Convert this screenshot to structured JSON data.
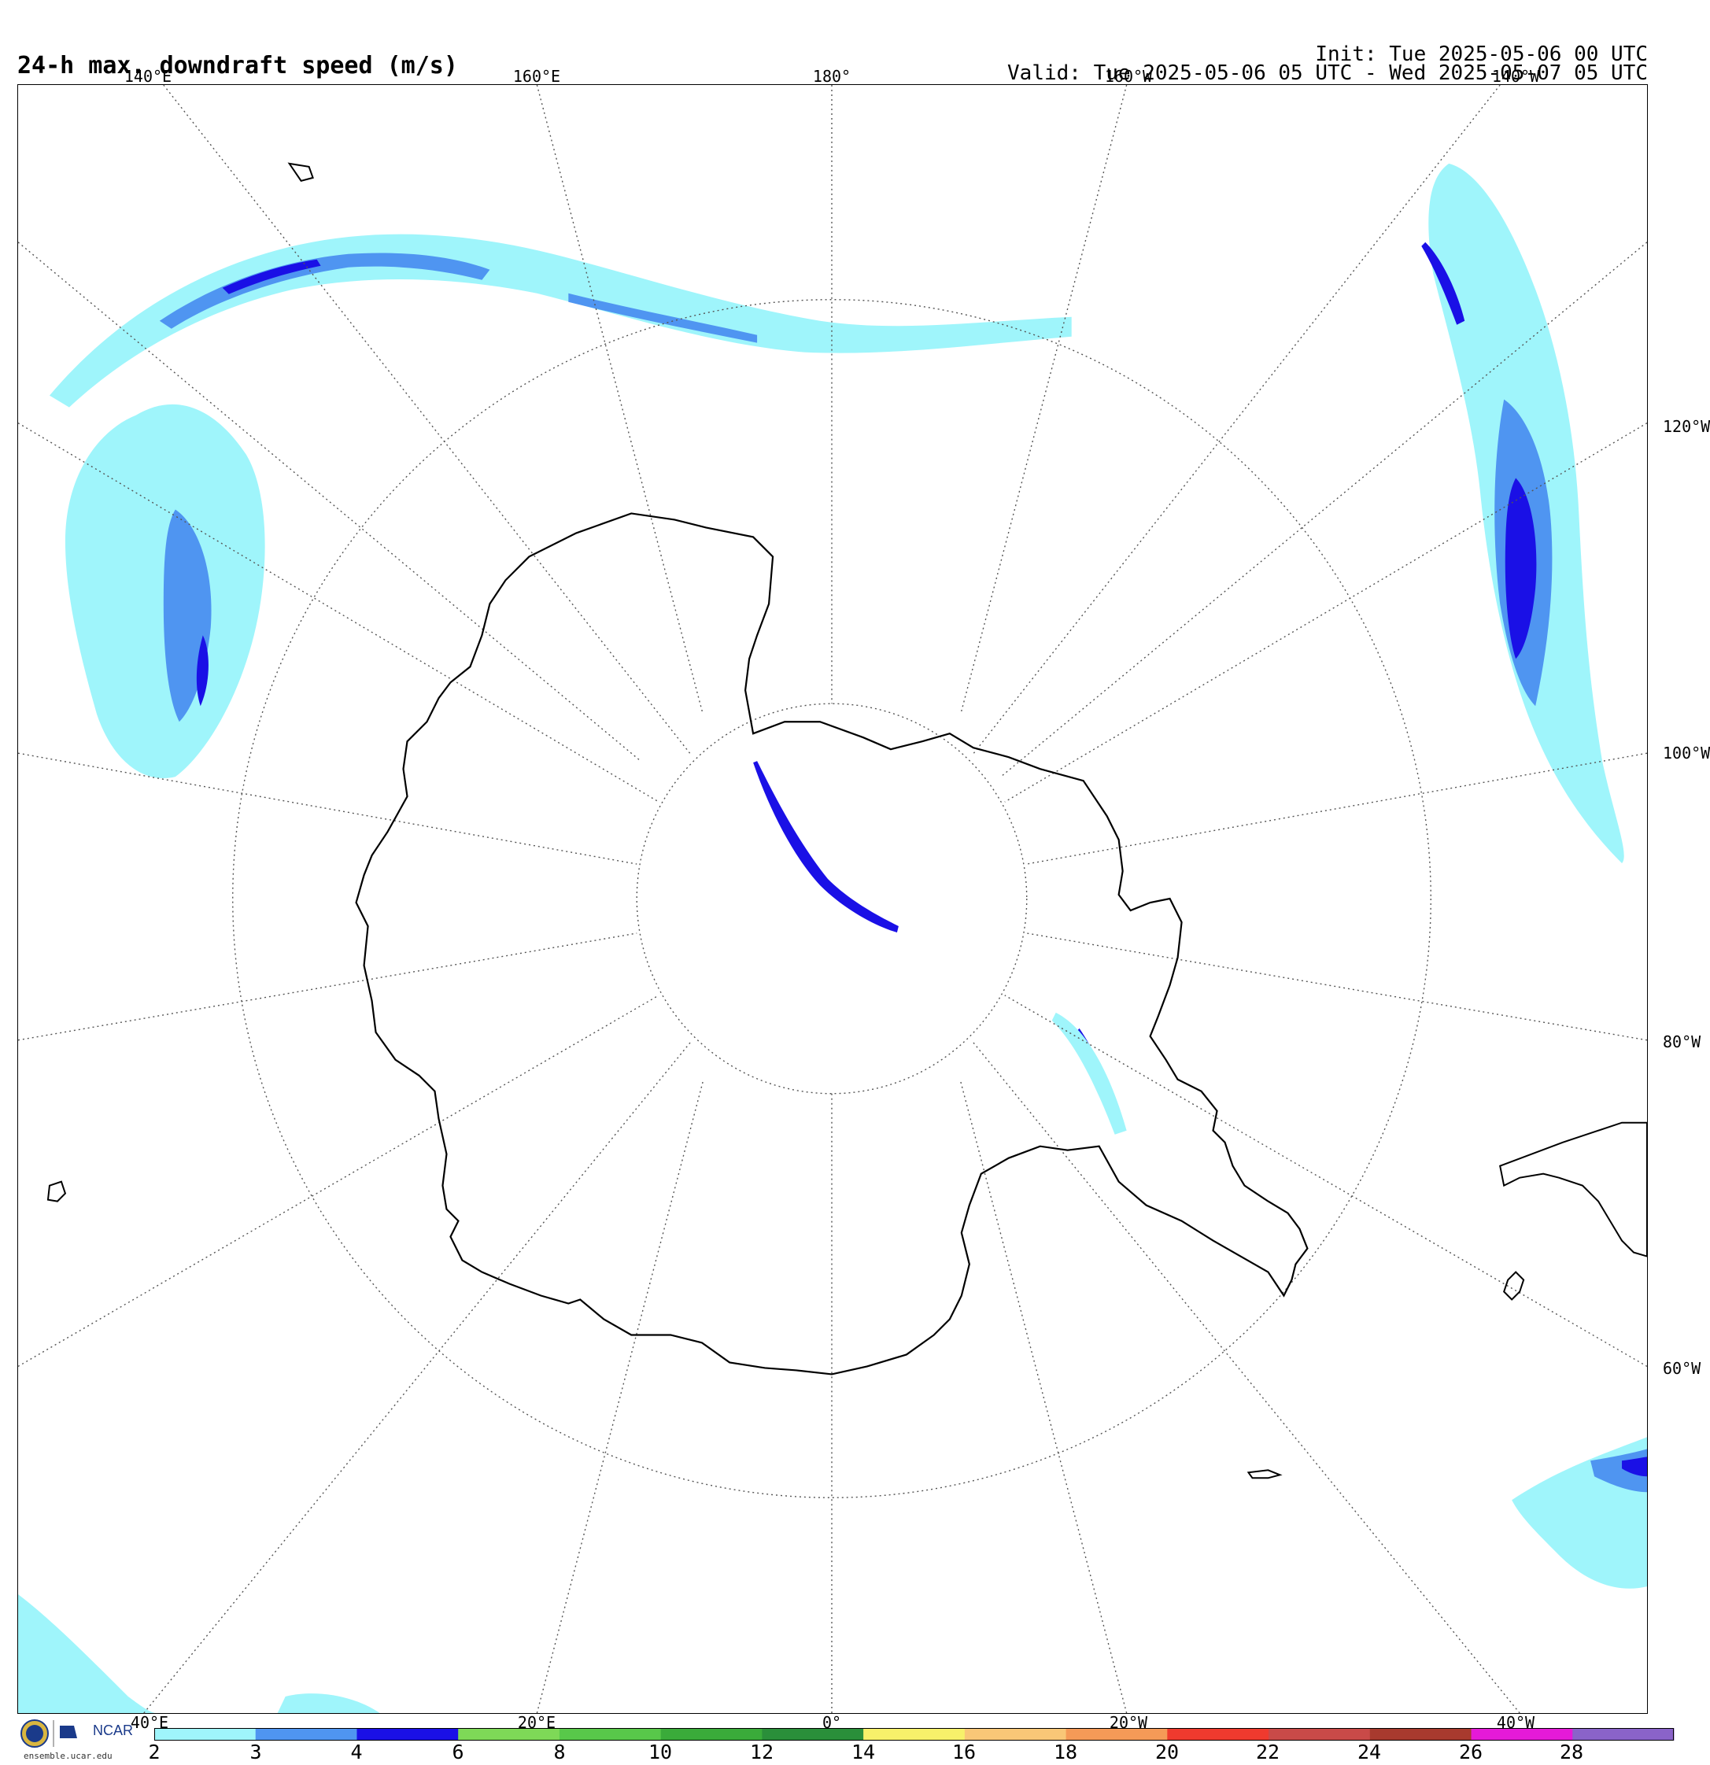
{
  "header": {
    "title": "24-h max. downdraft speed (m/s)",
    "init": "Init: Tue 2025-05-06 00 UTC",
    "valid": "Valid: Tue 2025-05-06 05 UTC - Wed 2025-05-07 05 UTC"
  },
  "map": {
    "projection": "south polar stereographic",
    "meridian_labels_top": [
      "140°E",
      "160°E",
      "180°",
      "160°W",
      "140°W"
    ],
    "meridian_labels_right": [
      "120°W",
      "100°W",
      "80°W",
      "60°W"
    ],
    "meridian_labels_bottom": [
      "40°E",
      "20°E",
      "0°",
      "20°W",
      "40°W"
    ]
  },
  "colorbar": {
    "ticks": [
      "2",
      "3",
      "4",
      "6",
      "8",
      "10",
      "12",
      "14",
      "16",
      "18",
      "20",
      "22",
      "24",
      "26",
      "28"
    ],
    "colors": [
      "#9ff5fb",
      "#4f95f1",
      "#1a10e6",
      "#7ed957",
      "#58c84a",
      "#3aab3a",
      "#2a8f3a",
      "#f7f16a",
      "#f9c777",
      "#f59a57",
      "#ef3a2e",
      "#c94a48",
      "#a83a2e",
      "#e51ad8",
      "#8a63c9"
    ]
  },
  "logo": {
    "org": "NCAR",
    "url": "ensemble.ucar.edu"
  }
}
